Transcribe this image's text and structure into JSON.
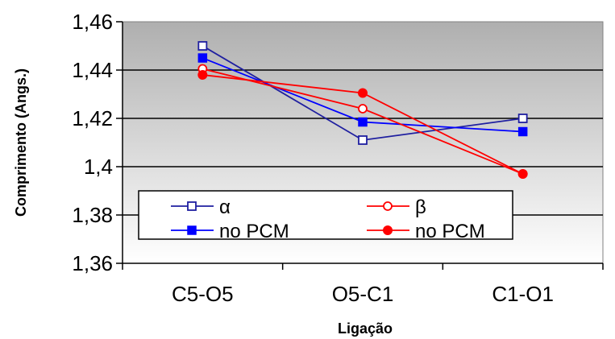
{
  "chart_data": {
    "type": "line",
    "categories": [
      "C5-O5",
      "O5-C1",
      "C1-O1"
    ],
    "series": [
      {
        "name": "α",
        "values": [
          1.45,
          1.411,
          1.42
        ],
        "color": "#1F1FA0",
        "marker": "open-square"
      },
      {
        "name": "no PCM",
        "values": [
          1.445,
          1.4185,
          1.4145
        ],
        "color": "#0000FF",
        "marker": "filled-square"
      },
      {
        "name": "β",
        "values": [
          1.4405,
          1.424,
          1.397
        ],
        "color": "#FF0000",
        "marker": "open-circle"
      },
      {
        "name": "no PCM",
        "values": [
          1.438,
          1.4305,
          1.397
        ],
        "color": "#FF0000",
        "marker": "filled-circle"
      }
    ],
    "yticks": [
      "1,36",
      "1,38",
      "1,4",
      "1,42",
      "1,44",
      "1,46"
    ],
    "ytick_values": [
      1.36,
      1.38,
      1.4,
      1.42,
      1.44,
      1.46
    ],
    "ylim": [
      1.36,
      1.46
    ],
    "xlabel": "Ligação",
    "ylabel": "Comprimento (Angs.)",
    "grid": true,
    "legend_placement": "lower-left, inside plot"
  }
}
